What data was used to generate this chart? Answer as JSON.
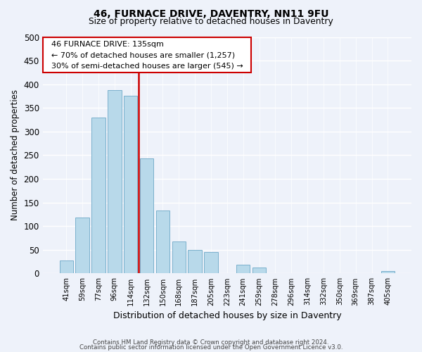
{
  "title": "46, FURNACE DRIVE, DAVENTRY, NN11 9FU",
  "subtitle": "Size of property relative to detached houses in Daventry",
  "xlabel": "Distribution of detached houses by size in Daventry",
  "ylabel": "Number of detached properties",
  "bar_labels": [
    "41sqm",
    "59sqm",
    "77sqm",
    "96sqm",
    "114sqm",
    "132sqm",
    "150sqm",
    "168sqm",
    "187sqm",
    "205sqm",
    "223sqm",
    "241sqm",
    "259sqm",
    "278sqm",
    "296sqm",
    "314sqm",
    "332sqm",
    "350sqm",
    "369sqm",
    "387sqm",
    "405sqm"
  ],
  "bar_values": [
    28,
    118,
    330,
    388,
    375,
    243,
    133,
    68,
    50,
    46,
    0,
    18,
    13,
    0,
    0,
    0,
    0,
    0,
    0,
    0,
    5
  ],
  "bar_color": "#b8d9ea",
  "bar_edge_color": "#7ab0cc",
  "property_line_index": 5,
  "property_line_color": "#cc0000",
  "annotation_title": "46 FURNACE DRIVE: 135sqm",
  "annotation_line1": "← 70% of detached houses are smaller (1,257)",
  "annotation_line2": "30% of semi-detached houses are larger (545) →",
  "annotation_box_color": "#ffffff",
  "annotation_box_edge": "#cc0000",
  "ylim": [
    0,
    500
  ],
  "yticks": [
    0,
    50,
    100,
    150,
    200,
    250,
    300,
    350,
    400,
    450,
    500
  ],
  "footer_line1": "Contains HM Land Registry data © Crown copyright and database right 2024.",
  "footer_line2": "Contains public sector information licensed under the Open Government Licence v3.0.",
  "background_color": "#eef2fa"
}
